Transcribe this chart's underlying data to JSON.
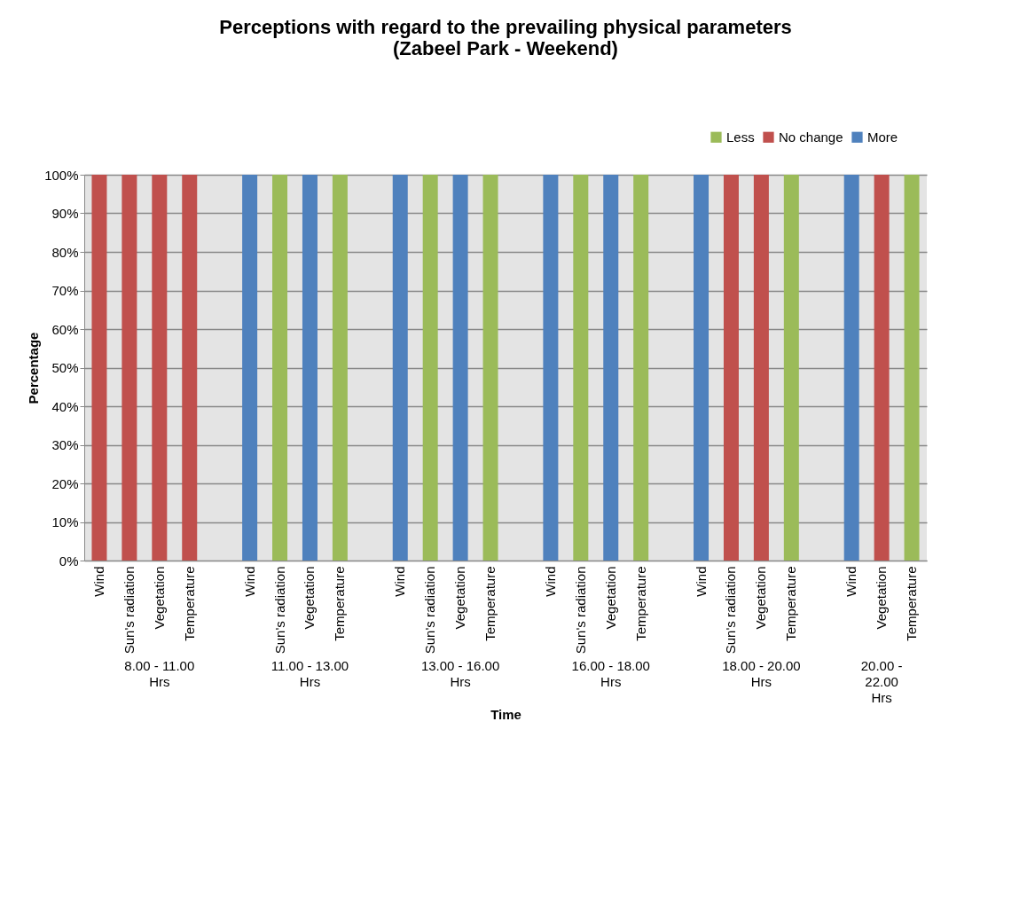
{
  "chart_data": {
    "type": "bar",
    "title": "Perceptions with regard to the prevailing physical parameters\n(Zabeel Park - Weekend)",
    "xlabel": "Time",
    "ylabel": "Percentage",
    "categories": [
      "Wind",
      "Sun's radiation",
      "Vegetation",
      "Temperature",
      null,
      "Wind",
      "Sun's radiation",
      "Vegetation",
      "Temperature",
      null,
      "Wind",
      "Sun's radiation",
      "Vegetation",
      "Temperature",
      null,
      "Wind",
      "Sun's radiation",
      "Vegetation",
      "Temperature",
      null,
      "Wind",
      "Sun's radiation",
      "Vegetation",
      "Temperature",
      null,
      "Wind",
      "Vegetation",
      "Temperature"
    ],
    "series": [
      {
        "name": "Less",
        "color": "#9bbb59",
        "values": [
          0,
          0,
          0,
          0,
          0,
          0,
          100,
          0,
          100,
          0,
          0,
          100,
          0,
          100,
          0,
          0,
          100,
          0,
          100,
          0,
          0,
          0,
          0,
          100,
          0,
          0,
          0,
          100
        ]
      },
      {
        "name": "No change",
        "color": "#c0504d",
        "values": [
          100,
          100,
          100,
          100,
          0,
          0,
          0,
          0,
          0,
          0,
          0,
          0,
          0,
          0,
          0,
          0,
          0,
          0,
          0,
          0,
          0,
          100,
          100,
          0,
          0,
          0,
          100,
          0
        ]
      },
      {
        "name": "More",
        "color": "#4f81bd",
        "values": [
          0,
          0,
          0,
          0,
          0,
          100,
          0,
          100,
          0,
          0,
          100,
          0,
          100,
          0,
          0,
          100,
          0,
          100,
          0,
          0,
          100,
          0,
          0,
          0,
          0,
          100,
          0,
          0
        ]
      }
    ],
    "stacked": true,
    "ylim": [
      0,
      100
    ],
    "yticks": [
      {
        "value": 0,
        "label": "0%"
      },
      {
        "value": 10,
        "label": "10%"
      },
      {
        "value": 20,
        "label": "20%"
      },
      {
        "value": 30,
        "label": "30%"
      },
      {
        "value": 40,
        "label": "40%"
      },
      {
        "value": 50,
        "label": "50%"
      },
      {
        "value": 60,
        "label": "60%"
      },
      {
        "value": 70,
        "label": "70%"
      },
      {
        "value": 80,
        "label": "80%"
      },
      {
        "value": 90,
        "label": "90%"
      },
      {
        "value": 100,
        "label": "100%"
      }
    ],
    "grid": "y",
    "legend": "top right",
    "annotations": [
      "8.00 - 11.00 Hrs",
      "11.00 - 13.00 Hrs",
      "13.00 - 16.00 Hrs",
      "16.00 - 18.00 Hrs",
      "18.00 - 20.00 Hrs",
      "20.00 - 22.00 Hrs"
    ]
  }
}
